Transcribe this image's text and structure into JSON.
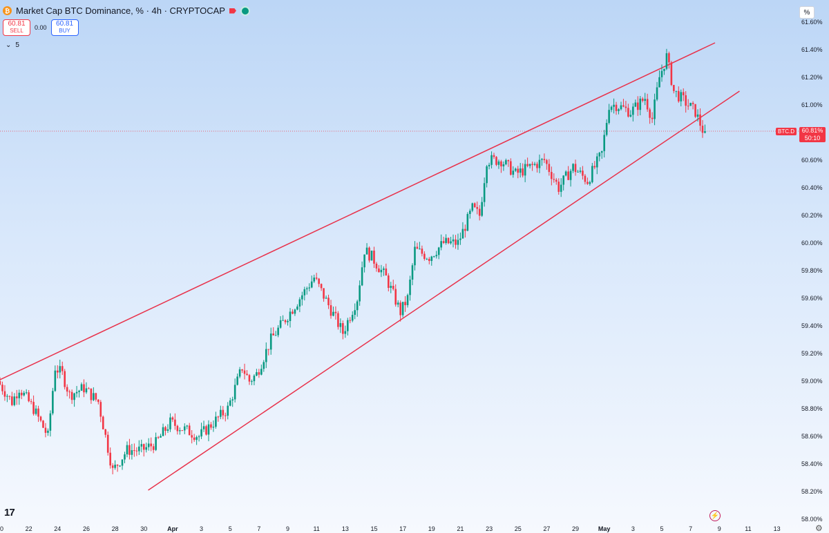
{
  "header": {
    "title": "Market Cap BTC Dominance, % · 4h · CRYPTOCAP",
    "coin_icon": "bitcoin-icon",
    "coin_glyph": "₿",
    "flag_icon": "red-flag-icon",
    "status_icon": "market-open-dot-icon"
  },
  "trade": {
    "sell_value": "60.81",
    "sell_label": "SELL",
    "spread": "0.00",
    "buy_value": "60.81",
    "buy_label": "BUY"
  },
  "indicators": {
    "collapse_icon": "chevron-down-icon",
    "collapse_glyph": "⌄",
    "count": "5"
  },
  "axis": {
    "unit_button": "%"
  },
  "price": {
    "symbol_label": "BTC.D",
    "last_value": "60.81%",
    "countdown": "50:10"
  },
  "footer": {
    "logo_text": "17",
    "bolt_icon": "lightning-icon",
    "bolt_glyph": "⚡",
    "settings_icon": "gear-icon",
    "settings_glyph": "⚙"
  },
  "colors": {
    "up": "#089981",
    "down": "#f23645",
    "trendline": "#e8324b",
    "accent": "#2962ff"
  },
  "chart_data": {
    "type": "candlestick",
    "title": "Market Cap BTC Dominance, % · 4h · CRYPTOCAP",
    "ylim": [
      58.0,
      61.7
    ],
    "y_ticks": [
      "61.60%",
      "61.40%",
      "61.20%",
      "61.00%",
      "60.80%",
      "60.60%",
      "60.40%",
      "60.20%",
      "60.00%",
      "59.80%",
      "59.60%",
      "59.40%",
      "59.20%",
      "59.00%",
      "58.80%",
      "58.60%",
      "58.40%",
      "58.20%",
      "58.00%"
    ],
    "y_tick_values": [
      61.6,
      61.4,
      61.2,
      61.0,
      60.8,
      60.6,
      60.4,
      60.2,
      60.0,
      59.8,
      59.6,
      59.4,
      59.2,
      59.0,
      58.8,
      58.6,
      58.4,
      58.2,
      58.0
    ],
    "x_ticks": [
      "0",
      "22",
      "24",
      "26",
      "28",
      "30",
      "Apr",
      "3",
      "5",
      "7",
      "9",
      "11",
      "13",
      "15",
      "17",
      "19",
      "21",
      "23",
      "25",
      "27",
      "29",
      "May",
      "3",
      "5",
      "7",
      "9",
      "11",
      "13"
    ],
    "x_tick_days": [
      0,
      2,
      4,
      6,
      8,
      10,
      12,
      14,
      16,
      18,
      20,
      22,
      24,
      26,
      28,
      30,
      32,
      34,
      36,
      38,
      40,
      42,
      44,
      46,
      48,
      50,
      52,
      54
    ],
    "x_range_days": [
      0,
      55.7
    ],
    "grid": false,
    "close_path": [
      [
        0,
        59.0
      ],
      [
        1,
        58.85
      ],
      [
        1.5,
        58.95
      ],
      [
        2.5,
        58.8
      ],
      [
        3.5,
        58.6
      ],
      [
        4,
        59.1
      ],
      [
        4.5,
        59.05
      ],
      [
        5,
        58.9
      ],
      [
        6,
        58.95
      ],
      [
        7,
        58.85
      ],
      [
        7.6,
        58.55
      ],
      [
        8,
        58.35
      ],
      [
        9,
        58.5
      ],
      [
        10,
        58.5
      ],
      [
        11,
        58.55
      ],
      [
        12,
        58.7
      ],
      [
        13,
        58.65
      ],
      [
        14,
        58.6
      ],
      [
        15,
        58.7
      ],
      [
        16,
        58.8
      ],
      [
        17,
        59.1
      ],
      [
        17.5,
        59.0
      ],
      [
        18,
        59.05
      ],
      [
        19,
        59.3
      ],
      [
        20,
        59.45
      ],
      [
        21,
        59.6
      ],
      [
        22,
        59.75
      ],
      [
        23,
        59.55
      ],
      [
        24,
        59.35
      ],
      [
        25,
        59.6
      ],
      [
        25.5,
        59.95
      ],
      [
        26,
        59.9
      ],
      [
        27,
        59.75
      ],
      [
        28,
        59.5
      ],
      [
        28.5,
        59.6
      ],
      [
        29,
        59.95
      ],
      [
        30,
        59.9
      ],
      [
        31,
        60.0
      ],
      [
        32,
        60.0
      ],
      [
        33,
        60.25
      ],
      [
        33.5,
        60.2
      ],
      [
        34,
        60.6
      ],
      [
        35,
        60.6
      ],
      [
        36,
        60.5
      ],
      [
        37,
        60.55
      ],
      [
        38,
        60.6
      ],
      [
        39,
        60.4
      ],
      [
        40,
        60.55
      ],
      [
        41,
        60.45
      ],
      [
        42,
        60.65
      ],
      [
        42.5,
        61.0
      ],
      [
        43,
        61.0
      ],
      [
        44,
        60.95
      ],
      [
        45,
        61.05
      ],
      [
        45.5,
        60.9
      ],
      [
        46,
        61.2
      ],
      [
        46.5,
        61.35
      ],
      [
        47,
        61.1
      ],
      [
        48,
        61.0
      ],
      [
        48.5,
        60.95
      ],
      [
        49,
        60.82
      ]
    ],
    "trendlines": [
      {
        "name": "upper",
        "from": [
          0,
          59.01
        ],
        "to": [
          49.7,
          61.45
        ]
      },
      {
        "name": "lower",
        "from": [
          10.3,
          58.21
        ],
        "to": [
          51.4,
          61.1
        ]
      }
    ],
    "last_price": 60.81
  }
}
